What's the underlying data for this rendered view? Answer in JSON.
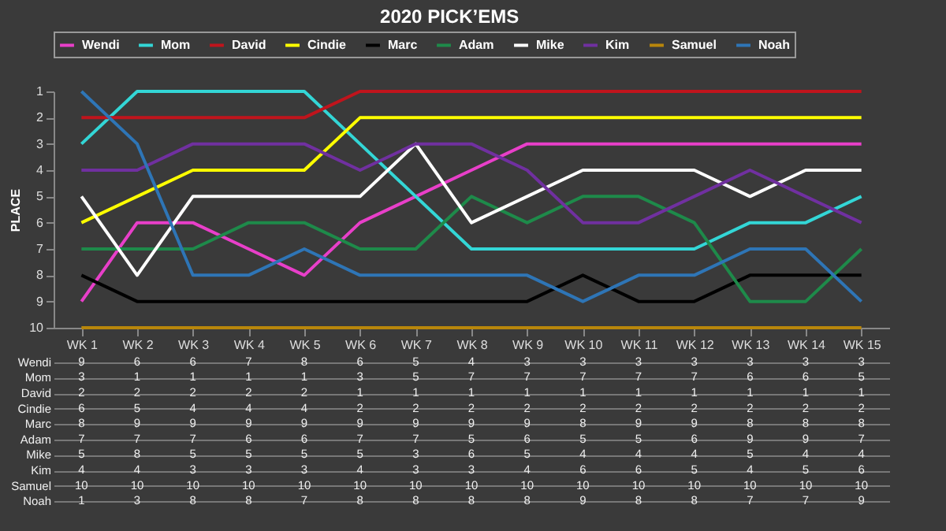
{
  "chart_data": {
    "type": "line",
    "title": "2020 PICK’EMS",
    "ylabel": "PLACE",
    "categories": [
      "WK 1",
      "WK 2",
      "WK 3",
      "WK 4",
      "WK 5",
      "WK 6",
      "WK 7",
      "WK 8",
      "WK 9",
      "WK 10",
      "WK 11",
      "WK 12",
      "WK 13",
      "WK 14",
      "WK 15"
    ],
    "series": [
      {
        "name": "Wendi",
        "color": "#e83fc9",
        "values": [
          9,
          6,
          6,
          7,
          8,
          6,
          5,
          4,
          3,
          3,
          3,
          3,
          3,
          3,
          3
        ]
      },
      {
        "name": "Mom",
        "color": "#33d6d6",
        "values": [
          3,
          1,
          1,
          1,
          1,
          3,
          5,
          7,
          7,
          7,
          7,
          7,
          6,
          6,
          5
        ]
      },
      {
        "name": "David",
        "color": "#c0141c",
        "values": [
          2,
          2,
          2,
          2,
          2,
          1,
          1,
          1,
          1,
          1,
          1,
          1,
          1,
          1,
          1
        ]
      },
      {
        "name": "Cindie",
        "color": "#ffff00",
        "values": [
          6,
          5,
          4,
          4,
          4,
          2,
          2,
          2,
          2,
          2,
          2,
          2,
          2,
          2,
          2
        ]
      },
      {
        "name": "Marc",
        "color": "#000000",
        "values": [
          8,
          9,
          9,
          9,
          9,
          9,
          9,
          9,
          9,
          8,
          9,
          9,
          8,
          8,
          8
        ]
      },
      {
        "name": "Adam",
        "color": "#1e8a4a",
        "values": [
          7,
          7,
          7,
          6,
          6,
          7,
          7,
          5,
          6,
          5,
          5,
          6,
          9,
          9,
          7
        ]
      },
      {
        "name": "Mike",
        "color": "#ffffff",
        "values": [
          5,
          8,
          5,
          5,
          5,
          5,
          3,
          6,
          5,
          4,
          4,
          4,
          5,
          4,
          4
        ]
      },
      {
        "name": "Kim",
        "color": "#7030a0",
        "values": [
          4,
          4,
          3,
          3,
          3,
          4,
          3,
          3,
          4,
          6,
          6,
          5,
          4,
          5,
          6
        ]
      },
      {
        "name": "Samuel",
        "color": "#b8860b",
        "values": [
          10,
          10,
          10,
          10,
          10,
          10,
          10,
          10,
          10,
          10,
          10,
          10,
          10,
          10,
          10
        ]
      },
      {
        "name": "Noah",
        "color": "#2e75b6",
        "values": [
          1,
          3,
          8,
          8,
          7,
          8,
          8,
          8,
          8,
          9,
          8,
          8,
          7,
          7,
          9
        ]
      }
    ],
    "ylim": [
      10,
      1
    ],
    "yticks": [
      1,
      2,
      3,
      4,
      5,
      6,
      7,
      8,
      9,
      10
    ],
    "grid": false,
    "legend": "top",
    "marker": "none",
    "line_style": "solid",
    "data_labels": true
  }
}
